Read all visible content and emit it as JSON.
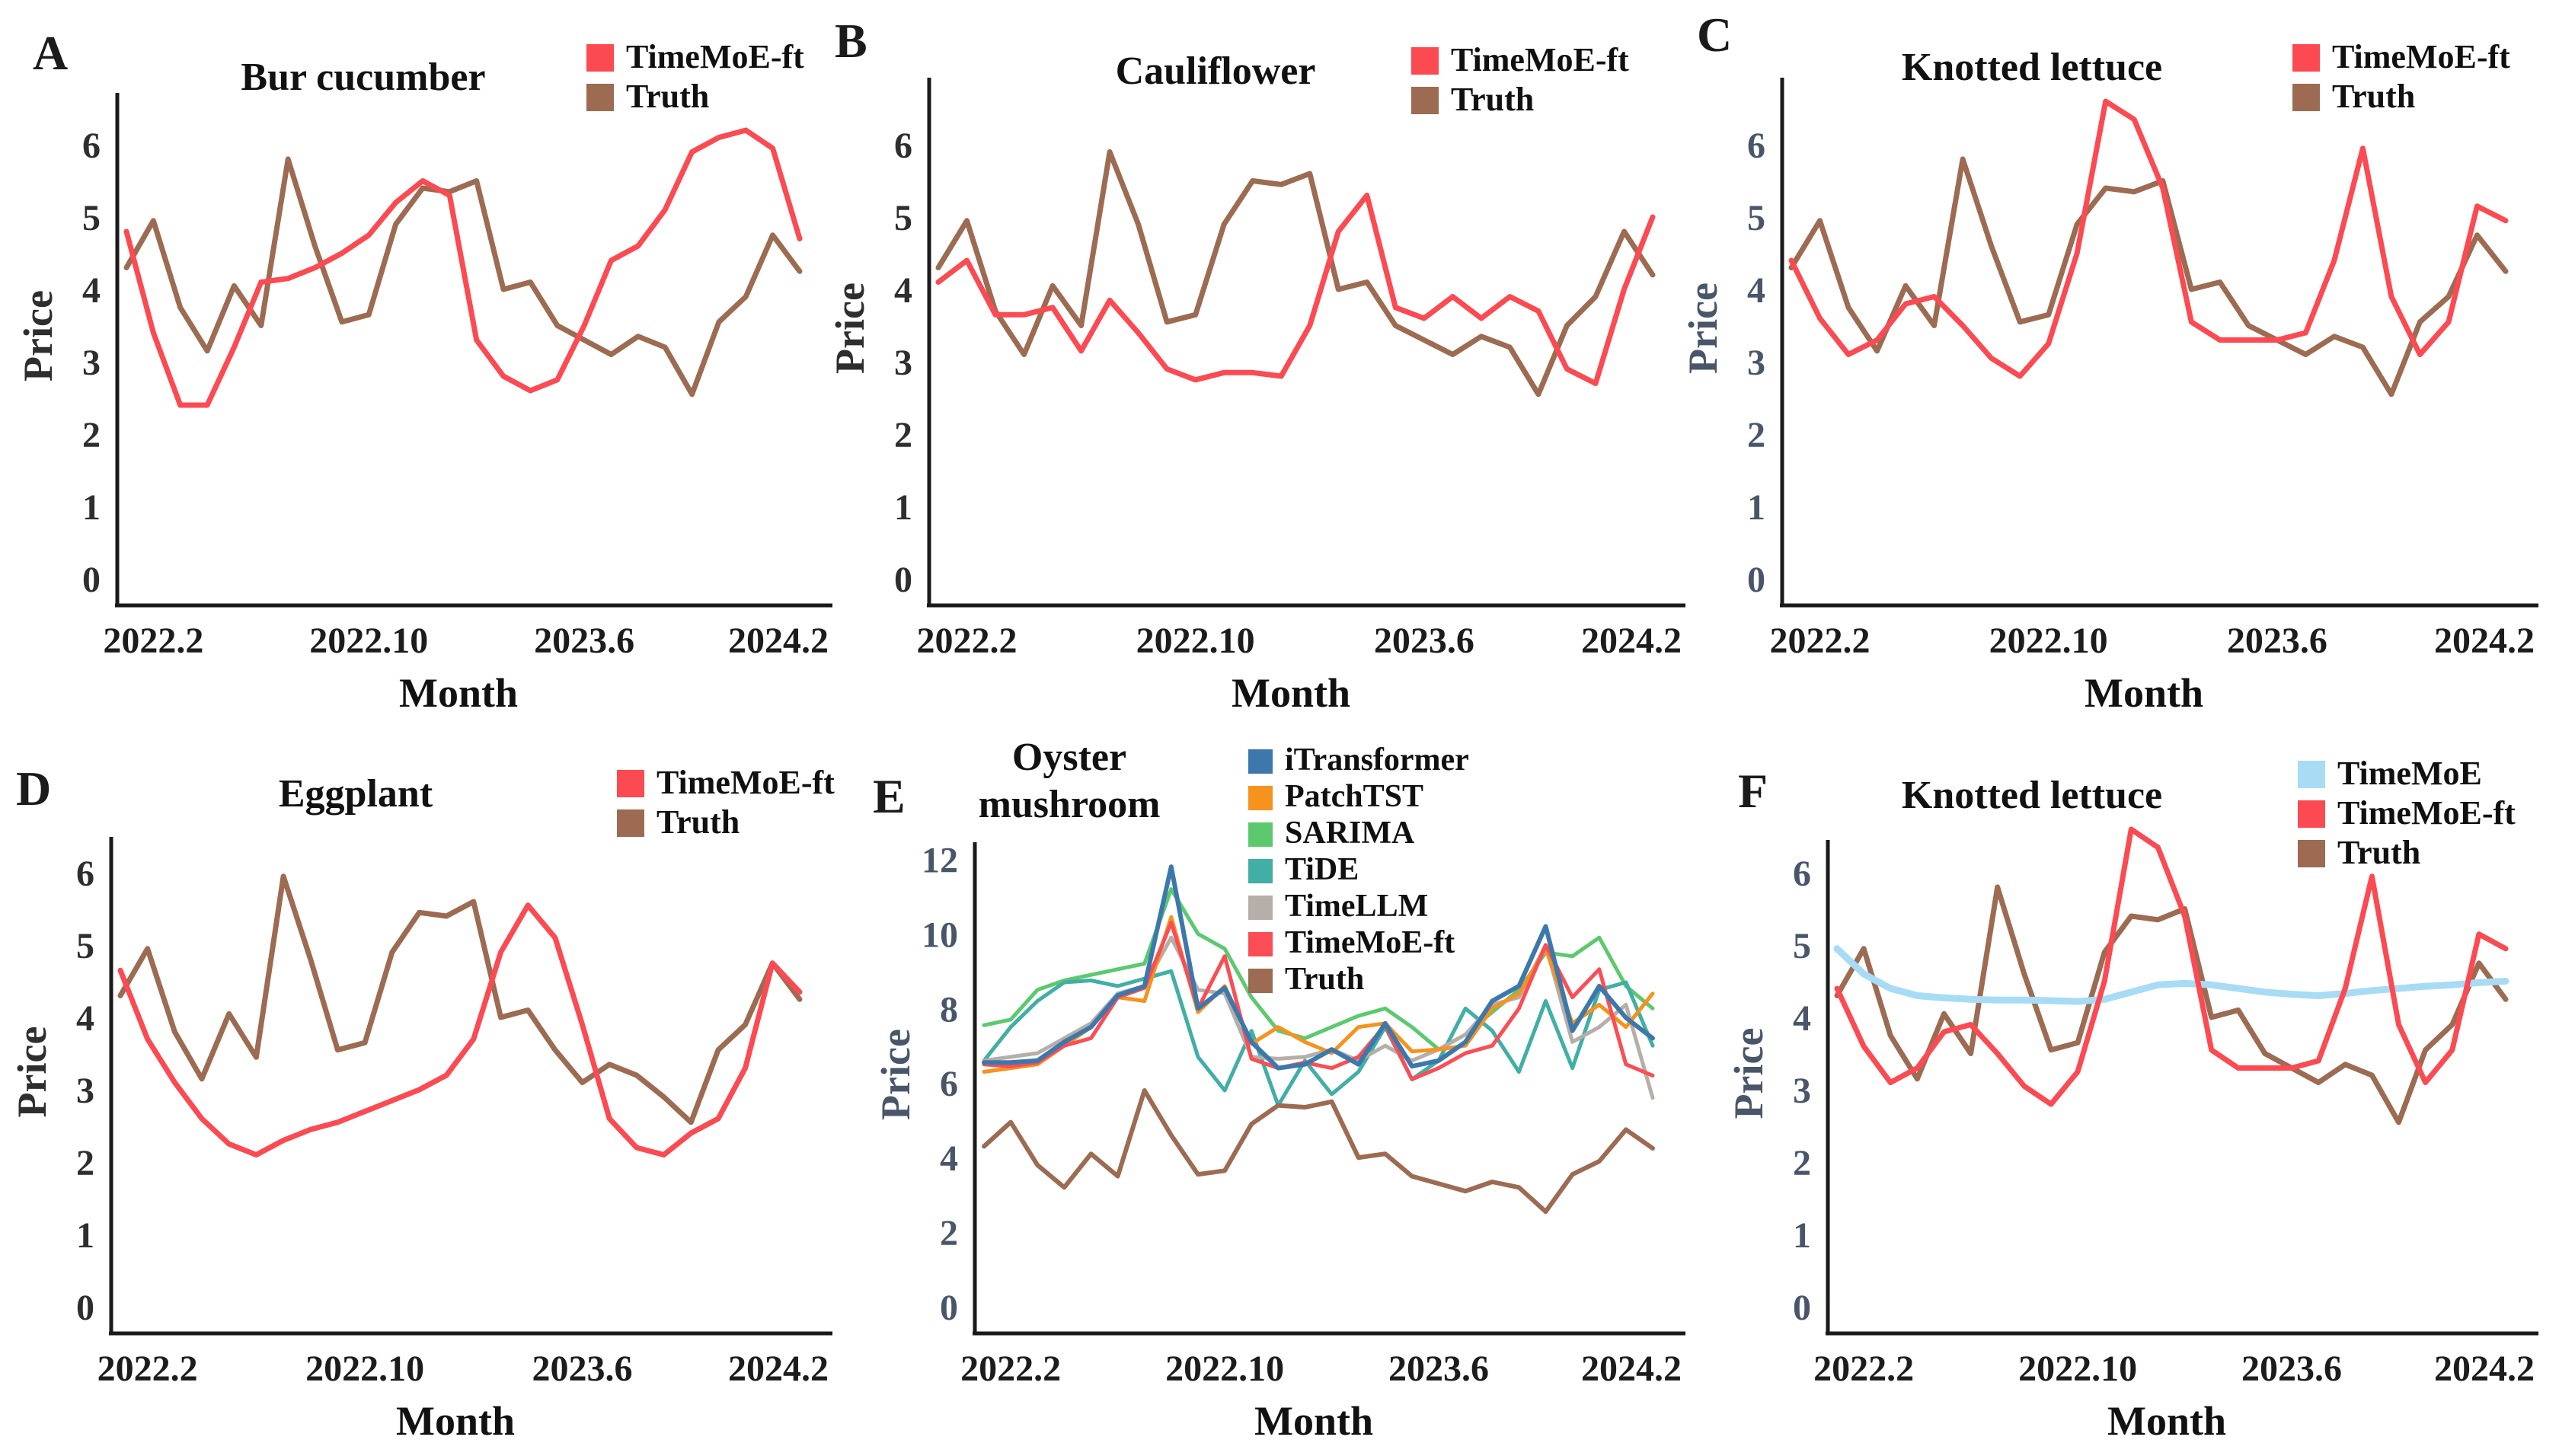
{
  "figure": {
    "background": "#ffffff",
    "panel_letters": [
      "A",
      "B",
      "C",
      "D",
      "E",
      "F"
    ]
  },
  "chart_data": [
    {
      "panel": "A",
      "type": "line",
      "title": "Bur cucumber",
      "xlabel": "Month",
      "ylabel": "Price",
      "x_tick_labels": [
        "2022.2",
        "2022.10",
        "2023.6",
        "2024.2"
      ],
      "x_tick_indices": [
        1,
        9,
        17,
        25
      ],
      "n_points": 26,
      "ylim": [
        0,
        6.8
      ],
      "yticks": [
        0,
        1,
        2,
        3,
        4,
        5,
        6
      ],
      "grid": false,
      "legend_position": "top-right",
      "tick_color": "#2e2e2e",
      "legend": [
        {
          "label": "TimeMoE-ft",
          "color": "#FC4A52"
        },
        {
          "label": "Truth",
          "color": "#9C6B52"
        }
      ],
      "series": [
        {
          "name": "Truth",
          "color": "#9C6B52",
          "values": [
            4.3,
            4.95,
            3.75,
            3.15,
            4.05,
            3.5,
            5.8,
            4.6,
            3.55,
            3.65,
            4.9,
            5.4,
            5.35,
            5.5,
            4.0,
            4.1,
            3.5,
            3.3,
            3.1,
            3.35,
            3.2,
            2.55,
            3.55,
            3.9,
            4.75,
            4.25
          ]
        },
        {
          "name": "TimeMoE-ft",
          "color": "#FC4A52",
          "values": [
            4.8,
            3.4,
            2.4,
            2.4,
            3.2,
            4.1,
            4.15,
            4.3,
            4.5,
            4.75,
            5.2,
            5.5,
            5.3,
            3.3,
            2.8,
            2.6,
            2.75,
            3.5,
            4.4,
            4.6,
            5.1,
            5.9,
            6.1,
            6.2,
            5.95,
            4.7
          ]
        }
      ]
    },
    {
      "panel": "B",
      "type": "line",
      "title": "Cauliflower",
      "xlabel": "Month",
      "ylabel": "Price",
      "x_tick_labels": [
        "2022.2",
        "2022.10",
        "2023.6",
        "2024.2"
      ],
      "x_tick_indices": [
        1,
        9,
        17,
        25
      ],
      "n_points": 26,
      "ylim": [
        0,
        6.8
      ],
      "yticks": [
        0,
        1,
        2,
        3,
        4,
        5,
        6
      ],
      "grid": false,
      "legend_position": "top-right",
      "tick_color": "#2e2e2e",
      "legend": [
        {
          "label": "TimeMoE-ft",
          "color": "#FC4A52"
        },
        {
          "label": "Truth",
          "color": "#9C6B52"
        }
      ],
      "series": [
        {
          "name": "Truth",
          "color": "#9C6B52",
          "values": [
            4.3,
            4.95,
            3.7,
            3.1,
            4.05,
            3.5,
            5.9,
            4.9,
            3.55,
            3.65,
            4.9,
            5.5,
            5.45,
            5.6,
            4.0,
            4.1,
            3.5,
            3.3,
            3.1,
            3.35,
            3.2,
            2.55,
            3.5,
            3.9,
            4.8,
            4.2
          ]
        },
        {
          "name": "TimeMoE-ft",
          "color": "#FC4A52",
          "values": [
            4.1,
            4.4,
            3.65,
            3.65,
            3.75,
            3.15,
            3.85,
            3.4,
            2.9,
            2.75,
            2.85,
            2.85,
            2.8,
            3.5,
            4.8,
            5.3,
            3.75,
            3.6,
            3.9,
            3.6,
            3.9,
            3.7,
            2.9,
            2.7,
            4.0,
            5.0
          ]
        }
      ]
    },
    {
      "panel": "C",
      "type": "line",
      "title": "Knotted lettuce",
      "xlabel": "Month",
      "ylabel": "Price",
      "x_tick_labels": [
        "2022.2",
        "2022.10",
        "2023.6",
        "2024.2"
      ],
      "x_tick_indices": [
        1,
        9,
        17,
        25
      ],
      "n_points": 26,
      "ylim": [
        0,
        6.8
      ],
      "yticks": [
        0,
        1,
        2,
        3,
        4,
        5,
        6
      ],
      "grid": false,
      "legend_position": "top-right",
      "tick_color": "#49566a",
      "legend": [
        {
          "label": "TimeMoE-ft",
          "color": "#FC4A52"
        },
        {
          "label": "Truth",
          "color": "#9C6B52"
        }
      ],
      "series": [
        {
          "name": "Truth",
          "color": "#9C6B52",
          "values": [
            4.3,
            4.95,
            3.75,
            3.15,
            4.05,
            3.5,
            5.8,
            4.6,
            3.55,
            3.65,
            4.9,
            5.4,
            5.35,
            5.5,
            4.0,
            4.1,
            3.5,
            3.3,
            3.1,
            3.35,
            3.2,
            2.55,
            3.55,
            3.9,
            4.75,
            4.25
          ]
        },
        {
          "name": "TimeMoE-ft",
          "color": "#FC4A52",
          "values": [
            4.4,
            3.6,
            3.1,
            3.3,
            3.8,
            3.9,
            3.5,
            3.05,
            2.8,
            3.25,
            4.5,
            6.6,
            6.35,
            5.4,
            3.55,
            3.3,
            3.3,
            3.3,
            3.4,
            4.4,
            5.95,
            3.9,
            3.1,
            3.55,
            5.15,
            4.95
          ]
        }
      ]
    },
    {
      "panel": "D",
      "type": "line",
      "title": "Eggplant",
      "xlabel": "Month",
      "ylabel": "Price",
      "x_tick_labels": [
        "2022.2",
        "2022.10",
        "2023.6",
        "2024.2"
      ],
      "x_tick_indices": [
        1,
        9,
        17,
        25
      ],
      "n_points": 26,
      "ylim": [
        0,
        6.8
      ],
      "yticks": [
        0,
        1,
        2,
        3,
        4,
        5,
        6
      ],
      "grid": false,
      "legend_position": "top-right",
      "tick_color": "#2e2e2e",
      "legend": [
        {
          "label": "TimeMoE-ft",
          "color": "#FC4A52"
        },
        {
          "label": "Truth",
          "color": "#9C6B52"
        }
      ],
      "series": [
        {
          "name": "Truth",
          "color": "#9C6B52",
          "values": [
            4.3,
            4.95,
            3.8,
            3.15,
            4.05,
            3.45,
            5.95,
            4.8,
            3.55,
            3.65,
            4.9,
            5.45,
            5.4,
            5.6,
            4.0,
            4.1,
            3.55,
            3.1,
            3.35,
            3.2,
            2.9,
            2.55,
            3.55,
            3.9,
            4.75,
            4.25
          ]
        },
        {
          "name": "TimeMoE-ft",
          "color": "#FC4A52",
          "values": [
            4.65,
            3.7,
            3.1,
            2.6,
            2.25,
            2.1,
            2.3,
            2.45,
            2.55,
            2.7,
            2.85,
            3.0,
            3.2,
            3.7,
            4.9,
            5.55,
            5.1,
            3.9,
            2.6,
            2.2,
            2.1,
            2.4,
            2.6,
            3.3,
            4.75,
            4.35
          ]
        }
      ]
    },
    {
      "panel": "E",
      "type": "line",
      "title": "Oyster mushroom",
      "title_lines": [
        "Oyster",
        "mushroom"
      ],
      "xlabel": "Month",
      "ylabel": "Price",
      "x_tick_labels": [
        "2022.2",
        "2022.10",
        "2023.6",
        "2024.2"
      ],
      "x_tick_indices": [
        1,
        9,
        17,
        25
      ],
      "n_points": 26,
      "ylim": [
        0,
        12.6
      ],
      "yticks": [
        0,
        2,
        4,
        6,
        8,
        10,
        12
      ],
      "grid": false,
      "legend_position": "top-center",
      "tick_color": "#49566a",
      "legend": [
        {
          "label": "iTransformer",
          "color": "#3D78AC"
        },
        {
          "label": "PatchTST",
          "color": "#F6921E"
        },
        {
          "label": "SARIMA",
          "color": "#5CC96F"
        },
        {
          "label": "TiDE",
          "color": "#41AFA5"
        },
        {
          "label": "TimeLLM",
          "color": "#B6AEA8"
        },
        {
          "label": "TimeMoE-ft",
          "color": "#FB4D55"
        },
        {
          "label": "Truth",
          "color": "#9C6B52"
        }
      ],
      "series": [
        {
          "name": "SARIMA",
          "color": "#5CC96F",
          "values": [
            7.55,
            7.7,
            8.5,
            8.75,
            8.9,
            9.05,
            9.2,
            11.2,
            10.0,
            9.6,
            8.3,
            7.4,
            7.2,
            7.5,
            7.8,
            8.0,
            7.5,
            6.9,
            7.3,
            7.9,
            8.5,
            9.5,
            9.4,
            9.9,
            8.6,
            8.0
          ]
        },
        {
          "name": "TiDE",
          "color": "#41AFA5",
          "values": [
            6.6,
            7.5,
            8.2,
            8.7,
            8.75,
            8.6,
            8.8,
            9.0,
            6.7,
            5.8,
            7.4,
            5.4,
            6.6,
            5.7,
            6.3,
            7.5,
            6.1,
            6.6,
            8.0,
            7.4,
            6.3,
            8.2,
            6.4,
            8.5,
            8.7,
            7.0
          ]
        },
        {
          "name": "TimeLLM",
          "color": "#B6AEA8",
          "values": [
            6.6,
            6.7,
            6.8,
            7.2,
            7.6,
            8.4,
            8.6,
            9.9,
            8.5,
            8.4,
            6.7,
            6.65,
            6.7,
            6.9,
            6.6,
            7.0,
            6.6,
            6.9,
            7.3,
            8.1,
            8.3,
            9.7,
            7.1,
            7.5,
            8.1,
            5.6
          ]
        },
        {
          "name": "PatchTST",
          "color": "#F6921E",
          "values": [
            6.3,
            6.4,
            6.5,
            7.0,
            7.5,
            8.3,
            8.2,
            10.45,
            7.9,
            8.6,
            7.05,
            7.5,
            7.1,
            6.8,
            7.5,
            7.6,
            6.85,
            6.9,
            7.0,
            8.0,
            8.4,
            9.6,
            7.6,
            8.1,
            7.5,
            8.4
          ]
        },
        {
          "name": "TimeMoE-ft",
          "color": "#FB4D55",
          "values": [
            6.5,
            6.45,
            6.55,
            7.0,
            7.2,
            8.3,
            8.55,
            10.3,
            8.0,
            9.4,
            6.65,
            6.4,
            6.55,
            6.4,
            6.7,
            7.55,
            6.1,
            6.4,
            6.8,
            7.0,
            8.0,
            9.7,
            8.3,
            9.05,
            6.5,
            6.2
          ]
        },
        {
          "name": "iTransformer",
          "color": "#3D78AC",
          "width": 6,
          "values": [
            6.55,
            6.55,
            6.6,
            7.1,
            7.5,
            8.35,
            8.6,
            11.8,
            8.0,
            8.55,
            7.1,
            6.4,
            6.5,
            6.9,
            6.5,
            7.6,
            6.45,
            6.6,
            7.1,
            8.2,
            8.6,
            10.2,
            7.4,
            8.6,
            7.75,
            7.2
          ]
        },
        {
          "name": "Truth",
          "color": "#9C6B52",
          "width": 6,
          "values": [
            4.3,
            4.95,
            3.8,
            3.2,
            4.1,
            3.5,
            5.8,
            4.6,
            3.55,
            3.65,
            4.9,
            5.4,
            5.35,
            5.5,
            4.0,
            4.1,
            3.5,
            3.3,
            3.1,
            3.35,
            3.2,
            2.55,
            3.55,
            3.9,
            4.75,
            4.25
          ]
        }
      ]
    },
    {
      "panel": "F",
      "type": "line",
      "title": "Knotted lettuce",
      "xlabel": "Month",
      "ylabel": "Price",
      "x_tick_labels": [
        "2022.2",
        "2022.10",
        "2023.6",
        "2024.2"
      ],
      "x_tick_indices": [
        1,
        9,
        17,
        25
      ],
      "n_points": 26,
      "ylim": [
        0,
        6.8
      ],
      "yticks": [
        0,
        1,
        2,
        3,
        4,
        5,
        6
      ],
      "grid": false,
      "legend_position": "top-right",
      "tick_color": "#49566a",
      "legend": [
        {
          "label": "TimeMoE",
          "color": "#A8DCF5"
        },
        {
          "label": "TimeMoE-ft",
          "color": "#FC4A52"
        },
        {
          "label": "Truth",
          "color": "#9C6B52"
        }
      ],
      "series": [
        {
          "name": "Truth",
          "color": "#9C6B52",
          "values": [
            4.3,
            4.95,
            3.75,
            3.15,
            4.05,
            3.5,
            5.8,
            4.6,
            3.55,
            3.65,
            4.9,
            5.4,
            5.35,
            5.5,
            4.0,
            4.1,
            3.5,
            3.3,
            3.1,
            3.35,
            3.2,
            2.55,
            3.55,
            3.9,
            4.75,
            4.25
          ]
        },
        {
          "name": "TimeMoE",
          "color": "#A8DCF5",
          "width": 9,
          "values": [
            4.95,
            4.6,
            4.4,
            4.3,
            4.27,
            4.25,
            4.24,
            4.24,
            4.23,
            4.22,
            4.25,
            4.35,
            4.45,
            4.47,
            4.45,
            4.4,
            4.35,
            4.32,
            4.3,
            4.33,
            4.37,
            4.4,
            4.43,
            4.45,
            4.48,
            4.5
          ]
        },
        {
          "name": "TimeMoE-ft",
          "color": "#FC4A52",
          "values": [
            4.4,
            3.6,
            3.1,
            3.3,
            3.8,
            3.9,
            3.5,
            3.05,
            2.8,
            3.25,
            4.5,
            6.6,
            6.35,
            5.4,
            3.55,
            3.3,
            3.3,
            3.3,
            3.4,
            4.4,
            5.95,
            3.9,
            3.1,
            3.55,
            5.15,
            4.95
          ]
        }
      ]
    }
  ]
}
